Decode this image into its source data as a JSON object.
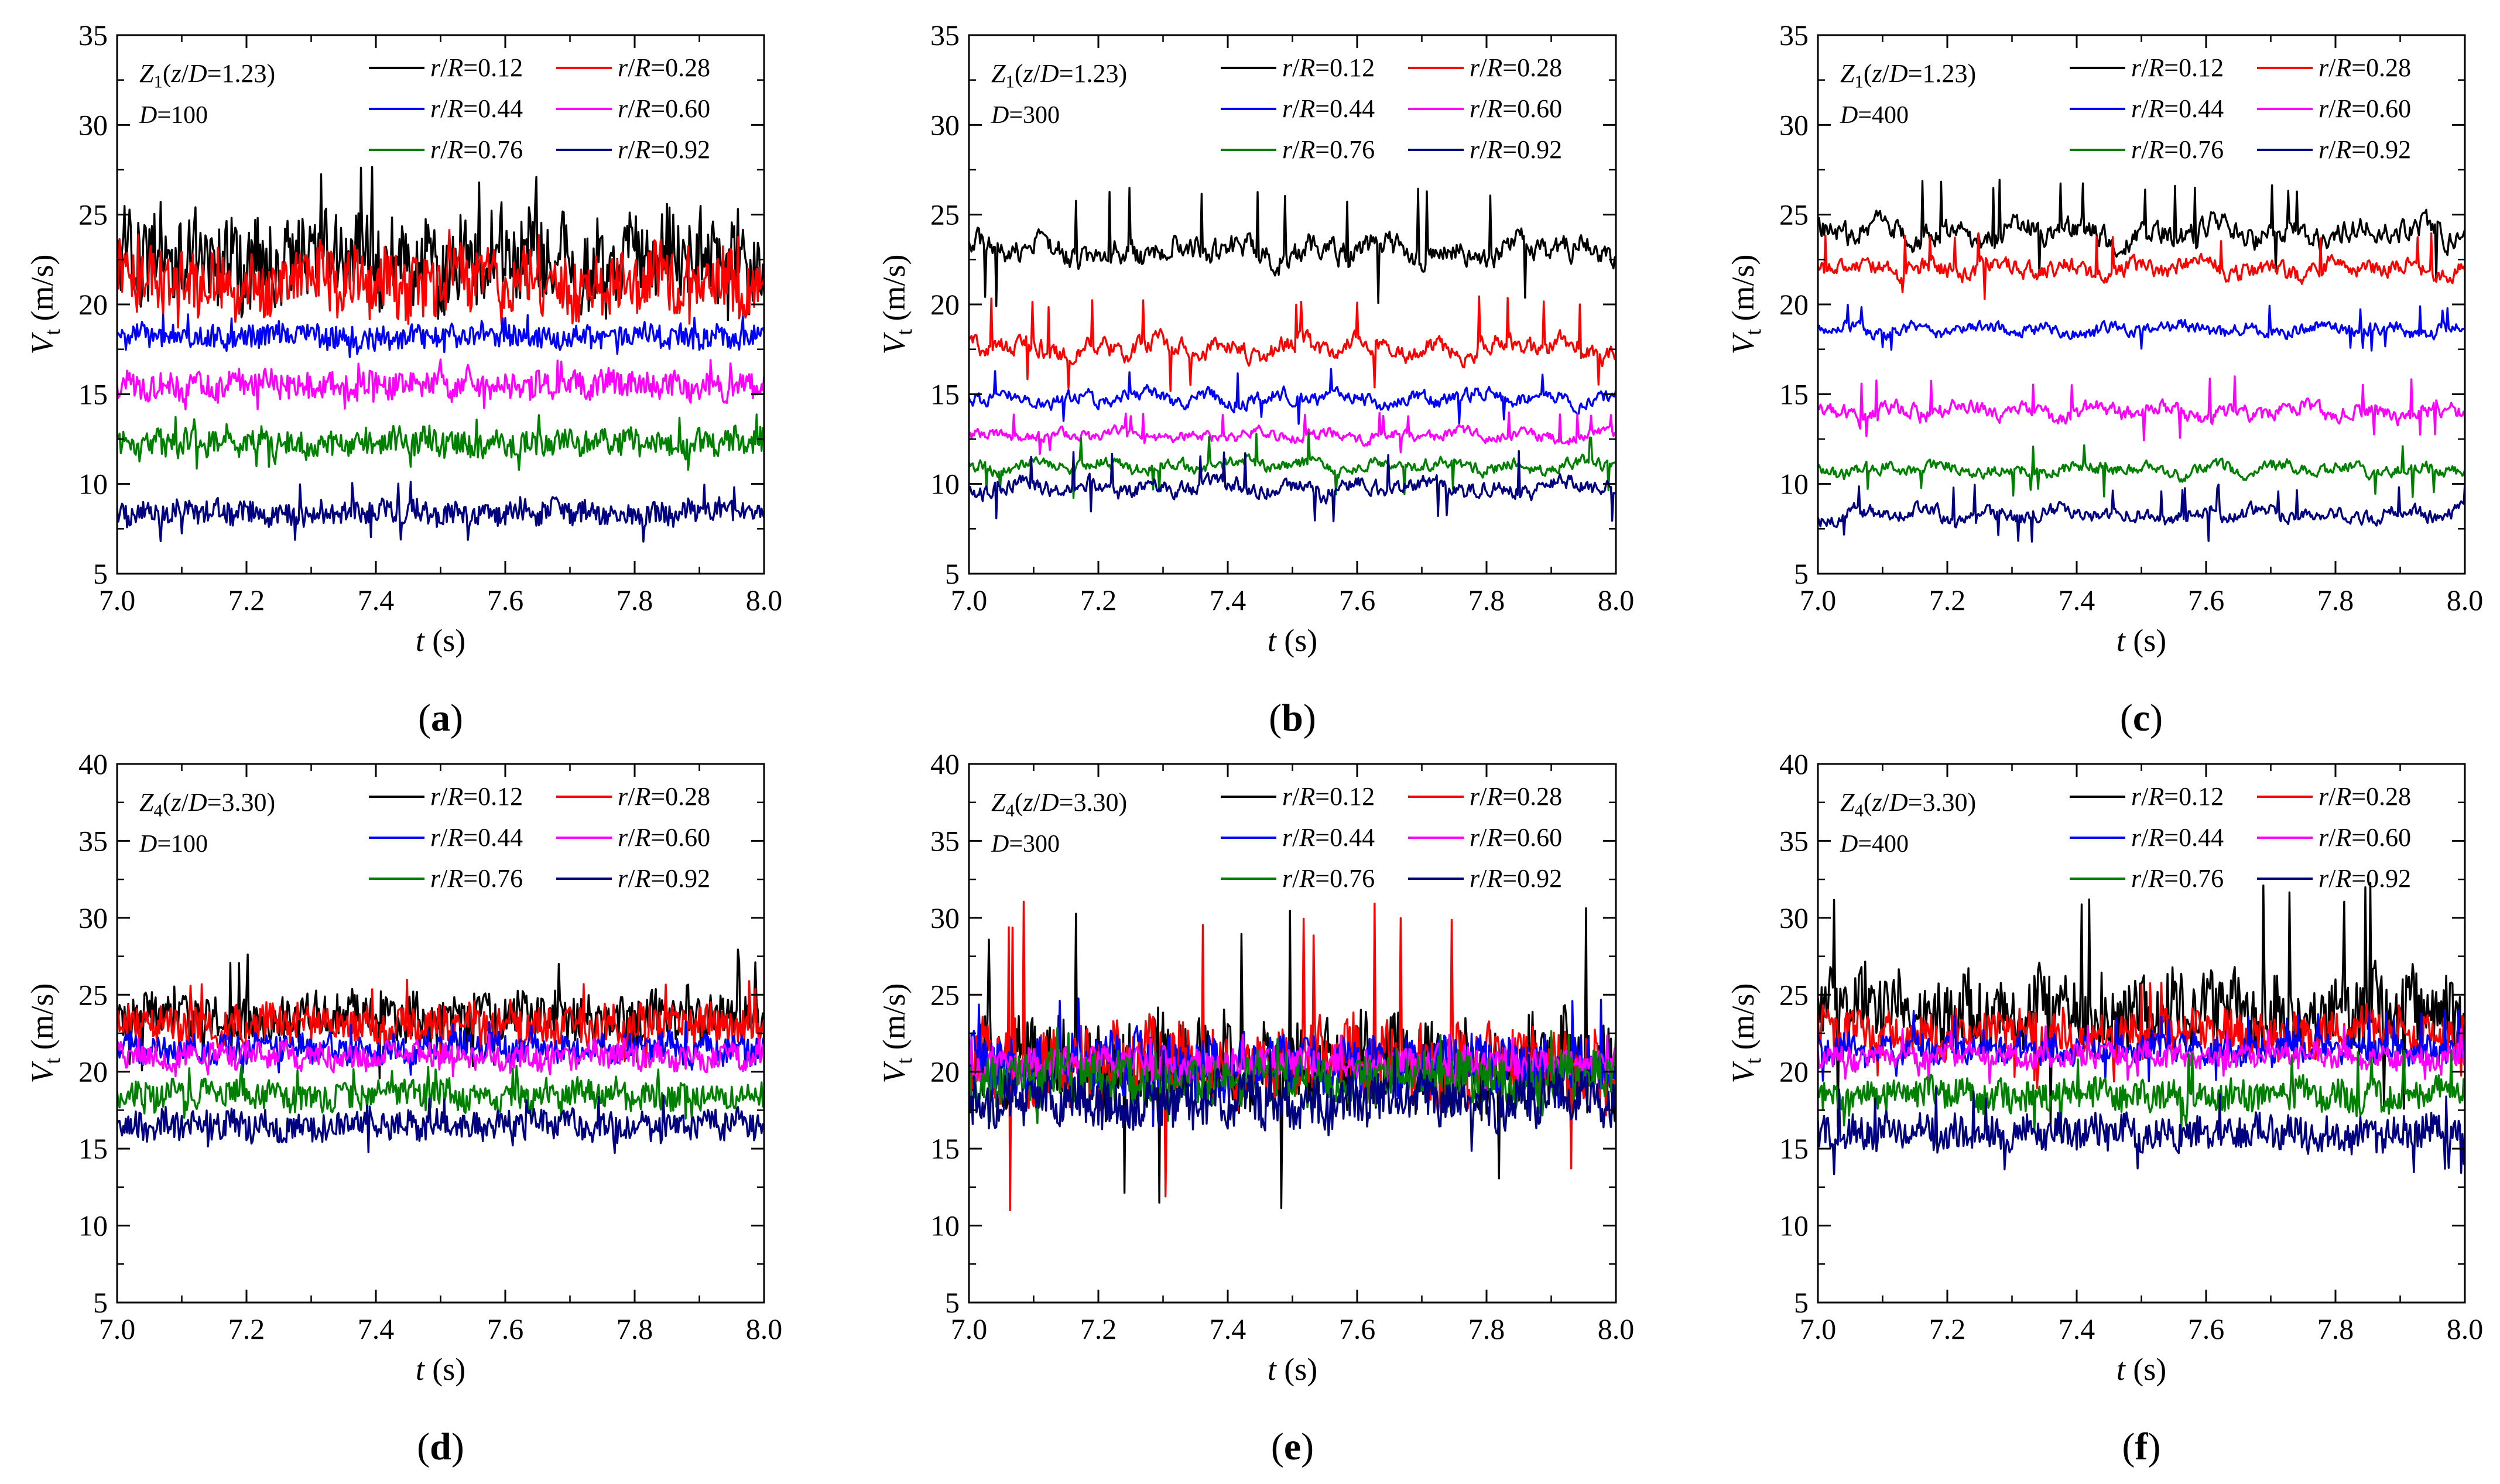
{
  "figure": {
    "series_colors": [
      "#000000",
      "#ff0000",
      "#0000ff",
      "#ff00ff",
      "#008000",
      "#000080"
    ],
    "legend_labels": [
      "r/R=0.12",
      "r/R=0.28",
      "r/R=0.44",
      "r/R=0.60",
      "r/R=0.76",
      "r/R=0.92"
    ]
  },
  "chart_data": [
    {
      "panel": "(a)",
      "type": "line",
      "location": "Z1(z/D=1.23)",
      "diameter": "D=100",
      "xlabel": "t (s)",
      "ylabel": "Vt (m/s)",
      "xlim": [
        7.0,
        8.0
      ],
      "ylim": [
        5,
        35
      ],
      "xticks": [
        "7.0",
        "7.2",
        "7.4",
        "7.6",
        "7.8",
        "8.0"
      ],
      "yticks": [
        "5",
        "10",
        "15",
        "20",
        "25",
        "30",
        "35"
      ],
      "series": [
        {
          "name": "r/R=0.12",
          "mean": 22.5,
          "amp": 2.6,
          "spike": 27.8
        },
        {
          "name": "r/R=0.28",
          "mean": 21.3,
          "amp": 1.9,
          "spike": 24.5
        },
        {
          "name": "r/R=0.44",
          "mean": 18.2,
          "amp": 0.7,
          "spike": 19.5
        },
        {
          "name": "r/R=0.60",
          "mean": 15.5,
          "amp": 0.8,
          "spike": 17.0
        },
        {
          "name": "r/R=0.76",
          "mean": 12.3,
          "amp": 0.8,
          "spike": 14.0
        },
        {
          "name": "r/R=0.92",
          "mean": 8.4,
          "amp": 0.7,
          "spike": 10.2
        }
      ]
    },
    {
      "panel": "(b)",
      "type": "line",
      "location": "Z1(z/D=1.23)",
      "diameter": "D=300",
      "xlabel": "t (s)",
      "ylabel": "Vt (m/s)",
      "xlim": [
        7.0,
        8.0
      ],
      "ylim": [
        5,
        35
      ],
      "xticks": [
        "7.0",
        "7.2",
        "7.4",
        "7.6",
        "7.8",
        "8.0"
      ],
      "yticks": [
        "5",
        "10",
        "15",
        "20",
        "25",
        "30",
        "35"
      ],
      "series": [
        {
          "name": "r/R=0.12",
          "mean": 23.0,
          "amp": 1.4,
          "spike": 26.5
        },
        {
          "name": "r/R=0.28",
          "mean": 17.6,
          "amp": 1.1,
          "spike": 20.5
        },
        {
          "name": "r/R=0.44",
          "mean": 14.8,
          "amp": 0.8,
          "spike": 16.5
        },
        {
          "name": "r/R=0.60",
          "mean": 12.7,
          "amp": 0.6,
          "spike": 14.0
        },
        {
          "name": "r/R=0.76",
          "mean": 11.0,
          "amp": 0.7,
          "spike": 13.0
        },
        {
          "name": "r/R=0.92",
          "mean": 9.8,
          "amp": 0.9,
          "spike": 12.0
        }
      ]
    },
    {
      "panel": "(c)",
      "type": "line",
      "location": "Z1(z/D=1.23)",
      "diameter": "D=400",
      "xlabel": "t (s)",
      "ylabel": "Vt (m/s)",
      "xlim": [
        7.0,
        8.0
      ],
      "ylim": [
        5,
        35
      ],
      "xticks": [
        "7.0",
        "7.2",
        "7.4",
        "7.6",
        "7.8",
        "8.0"
      ],
      "yticks": [
        "5",
        "10",
        "15",
        "20",
        "25",
        "30",
        "35"
      ],
      "series": [
        {
          "name": "r/R=0.12",
          "mean": 24.0,
          "amp": 1.3,
          "spike": 27.0
        },
        {
          "name": "r/R=0.28",
          "mean": 22.0,
          "amp": 1.0,
          "spike": 24.0
        },
        {
          "name": "r/R=0.44",
          "mean": 18.6,
          "amp": 0.7,
          "spike": 20.0
        },
        {
          "name": "r/R=0.60",
          "mean": 14.0,
          "amp": 0.9,
          "spike": 16.0
        },
        {
          "name": "r/R=0.76",
          "mean": 10.8,
          "amp": 0.7,
          "spike": 12.5
        },
        {
          "name": "r/R=0.92",
          "mean": 8.3,
          "amp": 0.8,
          "spike": 10.0
        }
      ]
    },
    {
      "panel": "(d)",
      "type": "line",
      "location": "Z4(z/D=3.30)",
      "diameter": "D=100",
      "xlabel": "t (s)",
      "ylabel": "Vt (m/s)",
      "xlim": [
        7.0,
        8.0
      ],
      "ylim": [
        5,
        40
      ],
      "xticks": [
        "7.0",
        "7.2",
        "7.4",
        "7.6",
        "7.8",
        "8.0"
      ],
      "yticks": [
        "5",
        "10",
        "15",
        "20",
        "25",
        "30",
        "35",
        "40"
      ],
      "series": [
        {
          "name": "r/R=0.12",
          "mean": 23.5,
          "amp": 1.7,
          "spike": 28.0
        },
        {
          "name": "r/R=0.28",
          "mean": 23.0,
          "amp": 1.4,
          "spike": 26.0
        },
        {
          "name": "r/R=0.44",
          "mean": 21.5,
          "amp": 1.0,
          "spike": 23.5
        },
        {
          "name": "r/R=0.60",
          "mean": 21.0,
          "amp": 0.9,
          "spike": 22.5
        },
        {
          "name": "r/R=0.76",
          "mean": 18.5,
          "amp": 1.0,
          "spike": 20.5
        },
        {
          "name": "r/R=0.92",
          "mean": 16.5,
          "amp": 1.0,
          "spike": 18.5
        }
      ]
    },
    {
      "panel": "(e)",
      "type": "line",
      "location": "Z4(z/D=3.30)",
      "diameter": "D=300",
      "xlabel": "t (s)",
      "ylabel": "Vt (m/s)",
      "xlim": [
        7.0,
        8.0
      ],
      "ylim": [
        5,
        40
      ],
      "xticks": [
        "7.0",
        "7.2",
        "7.4",
        "7.6",
        "7.8",
        "8.0"
      ],
      "yticks": [
        "5",
        "10",
        "15",
        "20",
        "25",
        "30",
        "35",
        "40"
      ],
      "series": [
        {
          "name": "r/R=0.12",
          "mean": 20.5,
          "amp": 3.0,
          "spike": 31.0
        },
        {
          "name": "r/R=0.28",
          "mean": 20.5,
          "amp": 2.6,
          "spike": 31.5
        },
        {
          "name": "r/R=0.44",
          "mean": 20.5,
          "amp": 2.0,
          "spike": 25.0
        },
        {
          "name": "r/R=0.60",
          "mean": 20.5,
          "amp": 1.1,
          "spike": 22.5
        },
        {
          "name": "r/R=0.76",
          "mean": 19.5,
          "amp": 1.7,
          "spike": 23.0
        },
        {
          "name": "r/R=0.92",
          "mean": 18.0,
          "amp": 1.8,
          "spike": 22.0
        }
      ]
    },
    {
      "panel": "(f)",
      "type": "line",
      "location": "Z4(z/D=3.30)",
      "diameter": "D=400",
      "xlabel": "t (s)",
      "ylabel": "Vt (m/s)",
      "xlim": [
        7.0,
        8.0
      ],
      "ylim": [
        5,
        40
      ],
      "xticks": [
        "7.0",
        "7.2",
        "7.4",
        "7.6",
        "7.8",
        "8.0"
      ],
      "yticks": [
        "5",
        "10",
        "15",
        "20",
        "25",
        "30",
        "35",
        "40"
      ],
      "series": [
        {
          "name": "r/R=0.12",
          "mean": 24.0,
          "amp": 2.6,
          "spike": 33.0
        },
        {
          "name": "r/R=0.28",
          "mean": 22.5,
          "amp": 1.5,
          "spike": 26.5
        },
        {
          "name": "r/R=0.44",
          "mean": 21.5,
          "amp": 1.0,
          "spike": 24.0
        },
        {
          "name": "r/R=0.60",
          "mean": 21.0,
          "amp": 0.8,
          "spike": 23.0
        },
        {
          "name": "r/R=0.76",
          "mean": 18.5,
          "amp": 1.1,
          "spike": 21.5
        },
        {
          "name": "r/R=0.92",
          "mean": 16.0,
          "amp": 1.2,
          "spike": 19.0
        }
      ]
    }
  ]
}
